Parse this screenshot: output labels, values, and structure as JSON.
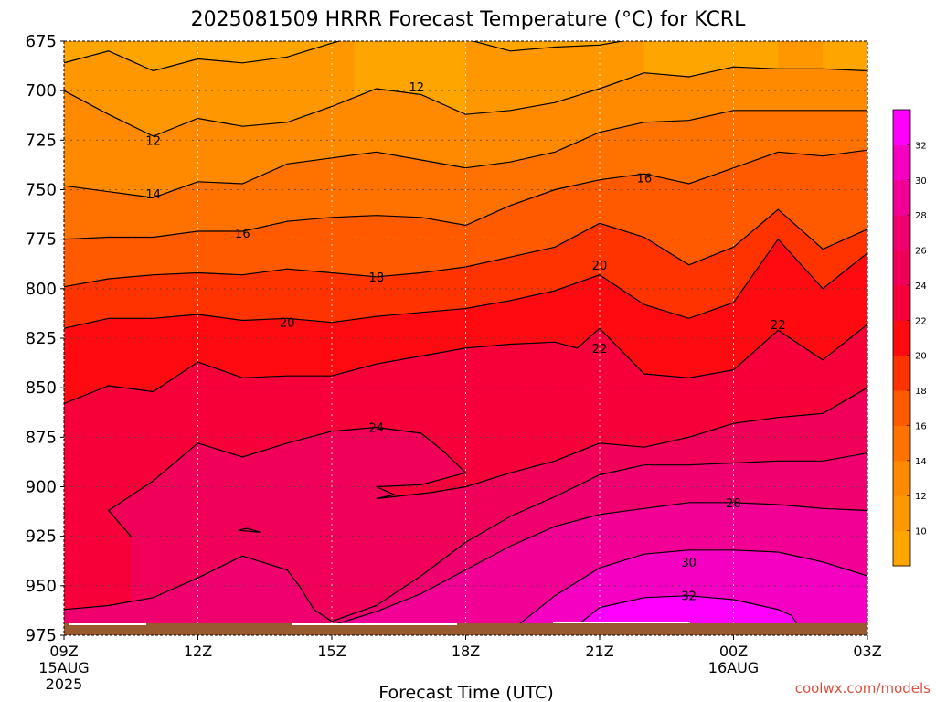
{
  "chart_data": {
    "type": "heatmap",
    "title": "2025081509 HRRR Forecast Temperature (°C) for KCRL",
    "xlabel": "Forecast Time (UTC)",
    "ylabel": "",
    "y_scale": "pressure, inverted",
    "ylim": [
      975,
      675
    ],
    "y_ticks": [
      675,
      700,
      725,
      750,
      775,
      800,
      825,
      850,
      875,
      900,
      925,
      950,
      975
    ],
    "x_hours": [
      0,
      3,
      6,
      9,
      12,
      15,
      18
    ],
    "x_ticks": [
      {
        "h": 0,
        "label": "09Z",
        "line2": "15AUG",
        "line3": "2025"
      },
      {
        "h": 3,
        "label": "12Z"
      },
      {
        "h": 6,
        "label": "15Z"
      },
      {
        "h": 9,
        "label": "18Z"
      },
      {
        "h": 12,
        "label": "21Z"
      },
      {
        "h": 15,
        "label": "00Z",
        "line2": "16AUG"
      },
      {
        "h": 18,
        "label": "03Z"
      }
    ],
    "grid": true,
    "colorbar": {
      "placement": "right",
      "levels": [
        8,
        10,
        12,
        14,
        16,
        18,
        20,
        22,
        24,
        26,
        28,
        30,
        32,
        34
      ],
      "labels": [
        10,
        12,
        14,
        16,
        18,
        20,
        22,
        24,
        26,
        28,
        30,
        32
      ],
      "colors": [
        "#ffa500",
        "#ff9800",
        "#ff8a00",
        "#ff7200",
        "#ff5a00",
        "#ff3300",
        "#ff0a10",
        "#f7003a",
        "#f00058",
        "#f0006e",
        "#f20096",
        "#f500c2",
        "#ff00ff"
      ]
    },
    "contour_labels": [
      {
        "value": "12",
        "hour": 7.9,
        "p": 698
      },
      {
        "value": "12",
        "hour": 2.0,
        "p": 725
      },
      {
        "value": "14",
        "hour": 2.0,
        "p": 752
      },
      {
        "value": "16",
        "hour": 4.0,
        "p": 772
      },
      {
        "value": "16",
        "hour": 13.0,
        "p": 744
      },
      {
        "value": "18",
        "hour": 7.0,
        "p": 794
      },
      {
        "value": "20",
        "hour": 5.0,
        "p": 817
      },
      {
        "value": "20",
        "hour": 12.0,
        "p": 788
      },
      {
        "value": "22",
        "hour": 12.0,
        "p": 830
      },
      {
        "value": "22",
        "hour": 16.0,
        "p": 818
      },
      {
        "value": "24",
        "hour": 7.0,
        "p": 870
      },
      {
        "value": "28",
        "hour": 15.0,
        "p": 908
      },
      {
        "value": "30",
        "hour": 14.0,
        "p": 938
      },
      {
        "value": "32",
        "hour": 14.0,
        "p": 955
      }
    ],
    "contours": [
      {
        "level": 10,
        "points": [
          [
            0,
            686
          ],
          [
            1,
            680
          ],
          [
            2,
            690
          ],
          [
            3,
            684
          ],
          [
            4,
            686
          ],
          [
            5,
            683
          ],
          [
            6,
            676
          ],
          [
            6.5,
            673
          ]
        ]
      },
      {
        "level": 10,
        "points": [
          [
            9,
            674
          ],
          [
            10,
            680
          ],
          [
            11,
            678
          ],
          [
            12,
            677
          ],
          [
            13,
            673
          ]
        ]
      },
      {
        "level": 10,
        "points": [
          [
            16,
            673
          ],
          [
            17,
            674
          ]
        ]
      },
      {
        "level": 12,
        "points": [
          [
            0,
            700
          ],
          [
            1,
            712
          ],
          [
            2,
            723
          ],
          [
            3,
            714
          ],
          [
            4,
            718
          ],
          [
            5,
            716
          ],
          [
            6,
            708
          ],
          [
            7,
            699
          ],
          [
            8,
            702
          ],
          [
            9,
            712
          ],
          [
            10,
            710
          ],
          [
            11,
            706
          ],
          [
            12,
            699
          ],
          [
            13,
            691
          ],
          [
            14,
            693
          ],
          [
            15,
            688
          ],
          [
            16,
            689
          ],
          [
            17,
            689
          ],
          [
            18,
            690
          ]
        ]
      },
      {
        "level": 14,
        "points": [
          [
            0,
            748
          ],
          [
            1,
            751
          ],
          [
            2,
            754
          ],
          [
            3,
            746
          ],
          [
            4,
            747
          ],
          [
            5,
            737
          ],
          [
            6,
            734
          ],
          [
            7,
            731
          ],
          [
            8,
            735
          ],
          [
            9,
            739
          ],
          [
            10,
            736
          ],
          [
            11,
            731
          ],
          [
            12,
            721
          ],
          [
            13,
            716
          ],
          [
            14,
            715
          ],
          [
            15,
            710
          ],
          [
            16,
            710
          ],
          [
            17,
            710
          ],
          [
            18,
            710
          ]
        ]
      },
      {
        "level": 16,
        "points": [
          [
            0,
            775
          ],
          [
            1,
            774
          ],
          [
            2,
            774
          ],
          [
            3,
            771
          ],
          [
            4,
            771
          ],
          [
            5,
            766
          ],
          [
            6,
            764
          ],
          [
            7,
            763
          ],
          [
            8,
            764
          ],
          [
            9,
            768
          ],
          [
            10,
            758
          ],
          [
            11,
            750
          ],
          [
            12,
            745
          ],
          [
            13,
            742
          ],
          [
            14,
            747
          ],
          [
            15,
            739
          ],
          [
            16,
            731
          ],
          [
            17,
            733
          ],
          [
            18,
            730
          ]
        ]
      },
      {
        "level": 18,
        "points": [
          [
            0,
            799
          ],
          [
            1,
            795
          ],
          [
            2,
            793
          ],
          [
            3,
            792
          ],
          [
            4,
            793
          ],
          [
            5,
            790
          ],
          [
            6,
            792
          ],
          [
            7,
            794
          ],
          [
            8,
            792
          ],
          [
            9,
            789
          ],
          [
            10,
            784
          ],
          [
            11,
            779
          ],
          [
            12,
            767
          ],
          [
            13,
            774
          ],
          [
            14,
            788
          ],
          [
            15,
            779
          ],
          [
            16,
            760
          ],
          [
            17,
            780
          ],
          [
            18,
            770
          ]
        ]
      },
      {
        "level": 20,
        "points": [
          [
            0,
            820
          ],
          [
            1,
            815
          ],
          [
            2,
            815
          ],
          [
            3,
            813
          ],
          [
            4,
            816
          ],
          [
            5,
            815
          ],
          [
            6,
            817
          ],
          [
            7,
            814
          ],
          [
            8,
            812
          ],
          [
            9,
            810
          ],
          [
            10,
            806
          ],
          [
            11,
            801
          ],
          [
            12,
            793
          ],
          [
            13,
            808
          ],
          [
            14,
            815
          ],
          [
            15,
            807
          ],
          [
            16,
            775
          ],
          [
            17,
            800
          ],
          [
            18,
            782
          ]
        ]
      },
      {
        "level": 22,
        "points": [
          [
            0,
            858
          ],
          [
            1,
            849
          ],
          [
            2,
            852
          ],
          [
            3,
            837
          ],
          [
            4,
            845
          ],
          [
            5,
            844
          ],
          [
            6,
            844
          ],
          [
            7,
            838
          ],
          [
            8,
            834
          ],
          [
            9,
            830
          ],
          [
            10,
            828
          ],
          [
            11,
            827
          ],
          [
            11.5,
            830
          ],
          [
            12,
            820
          ],
          [
            13,
            843
          ],
          [
            14,
            845
          ],
          [
            15,
            841
          ],
          [
            16,
            821
          ],
          [
            17,
            836
          ],
          [
            18,
            818
          ]
        ]
      },
      {
        "level": 24,
        "points": [
          [
            1.5,
            925
          ],
          [
            1,
            912
          ],
          [
            2,
            897
          ],
          [
            3,
            878
          ],
          [
            4,
            885
          ],
          [
            5,
            878
          ],
          [
            6,
            872
          ],
          [
            7,
            870
          ],
          [
            8,
            873
          ],
          [
            8.5,
            882
          ],
          [
            9,
            893
          ],
          [
            8,
            899
          ],
          [
            7,
            900
          ],
          [
            7.4,
            904
          ],
          [
            7.0,
            906
          ],
          [
            8.2,
            903
          ],
          [
            9,
            900
          ],
          [
            10,
            893
          ],
          [
            11,
            887
          ],
          [
            12,
            878
          ],
          [
            13,
            880
          ],
          [
            14,
            875
          ],
          [
            15,
            868
          ],
          [
            16,
            865
          ],
          [
            17,
            863
          ],
          [
            18,
            850
          ]
        ]
      },
      {
        "level": 24,
        "points": [
          [
            3.9,
            922
          ],
          [
            4.4,
            923
          ],
          [
            4.1,
            921
          ],
          [
            3.9,
            922
          ]
        ]
      },
      {
        "level": 26,
        "points": [
          [
            0,
            962
          ],
          [
            1,
            960
          ],
          [
            2,
            956
          ],
          [
            3,
            946
          ],
          [
            4,
            935
          ],
          [
            5,
            942
          ],
          [
            5.3,
            951
          ],
          [
            5.6,
            962
          ],
          [
            6,
            968
          ],
          [
            7,
            960
          ],
          [
            8,
            945
          ],
          [
            9,
            928
          ],
          [
            10,
            915
          ],
          [
            11,
            905
          ],
          [
            12,
            894
          ],
          [
            13,
            889
          ],
          [
            14,
            889
          ],
          [
            15,
            888
          ],
          [
            16,
            887
          ],
          [
            17,
            887
          ],
          [
            18,
            883
          ]
        ]
      },
      {
        "level": 28,
        "points": [
          [
            6,
            970
          ],
          [
            7,
            963
          ],
          [
            8,
            954
          ],
          [
            9,
            942
          ],
          [
            10,
            930
          ],
          [
            11,
            920
          ],
          [
            12,
            914
          ],
          [
            13,
            911
          ],
          [
            14,
            908
          ],
          [
            15,
            908
          ],
          [
            16,
            909
          ],
          [
            17,
            911
          ],
          [
            18,
            912
          ]
        ]
      },
      {
        "level": 30,
        "points": [
          [
            10,
            973
          ],
          [
            11,
            955
          ],
          [
            12,
            941
          ],
          [
            13,
            934
          ],
          [
            14,
            932
          ],
          [
            15,
            932
          ],
          [
            16,
            933
          ],
          [
            17,
            938
          ],
          [
            18,
            945
          ]
        ]
      },
      {
        "level": 32,
        "points": [
          [
            11.5,
            970
          ],
          [
            12,
            961
          ],
          [
            13,
            956
          ],
          [
            14,
            955
          ],
          [
            15,
            957
          ],
          [
            16,
            962
          ],
          [
            16.3,
            965
          ],
          [
            16.5,
            972
          ]
        ]
      }
    ]
  },
  "credit": "coolwx.com/models"
}
